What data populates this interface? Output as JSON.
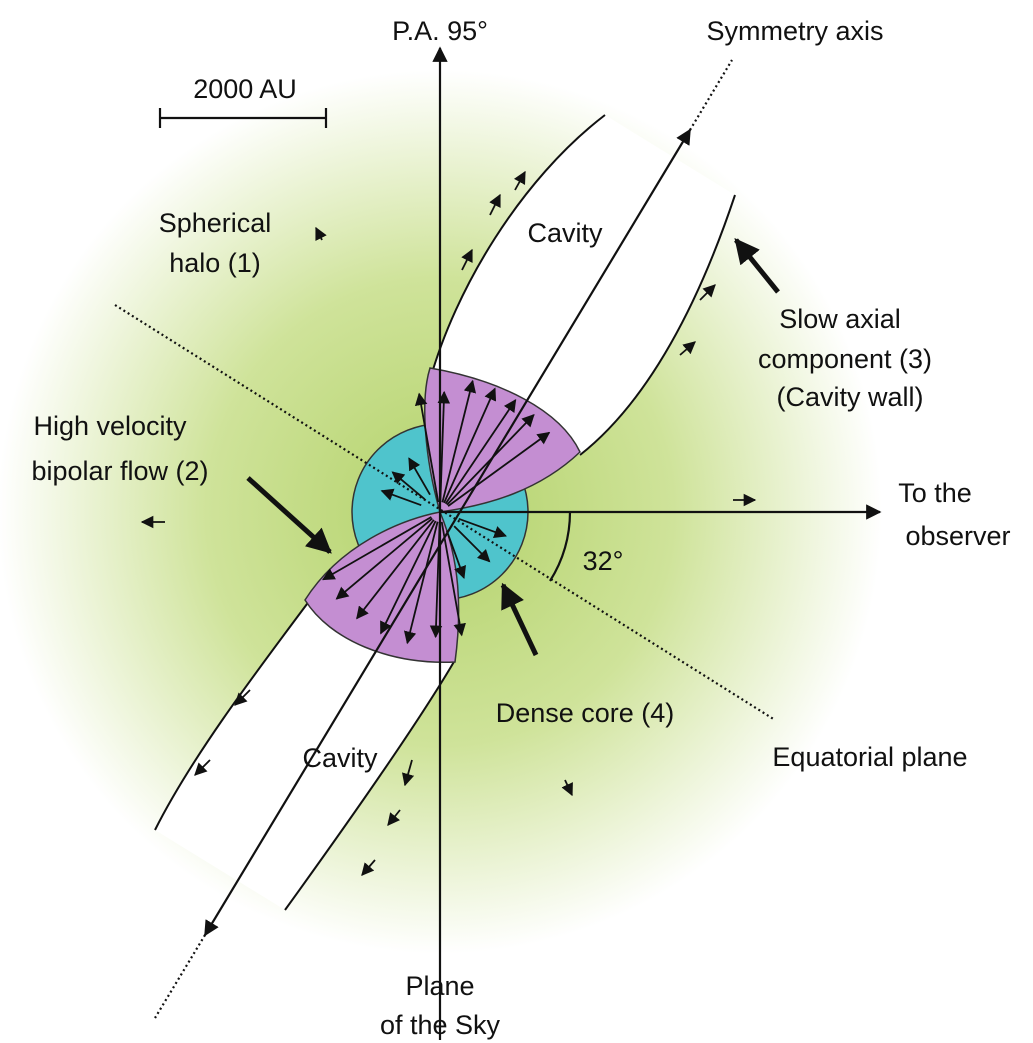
{
  "labels": [
    {
      "lines": [
        "P.A. 95°"
      ]
    },
    {
      "lines": [
        "Symmetry axis"
      ]
    },
    {
      "lines": [
        "2000 AU"
      ]
    },
    {
      "lines": [
        "Spherical",
        "halo (1)"
      ]
    },
    {
      "lines": [
        "Cavity"
      ]
    },
    {
      "lines": [
        "Slow axial",
        "component (3)",
        "(Cavity wall)"
      ]
    },
    {
      "lines": [
        "High velocity",
        "bipolar flow (2)"
      ]
    },
    {
      "lines": [
        "To the",
        "observer"
      ]
    },
    {
      "lines": [
        "32°"
      ]
    },
    {
      "lines": [
        "Dense core (4)"
      ]
    },
    {
      "lines": [
        "Cavity"
      ]
    },
    {
      "lines": [
        "Equatorial plane"
      ]
    },
    {
      "lines": [
        "Plane",
        "of the Sky"
      ]
    }
  ]
}
